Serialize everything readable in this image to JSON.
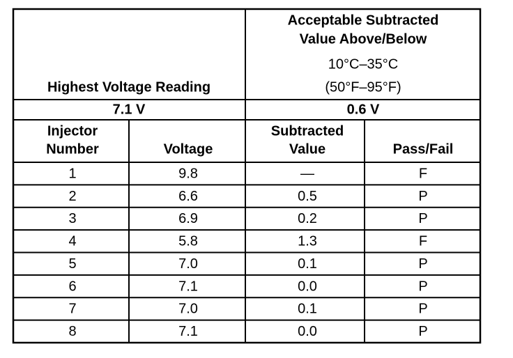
{
  "header": {
    "left_title": "Highest Voltage Reading",
    "right_title_lines": [
      "Acceptable Subtracted",
      "Value Above/Below"
    ],
    "temperature_c": "10°C–35°C",
    "temperature_f": "(50°F–95°F)"
  },
  "highest_voltage": "7.1 V",
  "acceptable_value": "0.6 V",
  "table": {
    "columns": [
      [
        "Injector",
        "Number"
      ],
      [
        "Voltage"
      ],
      [
        "Subtracted",
        "Value"
      ],
      [
        "Pass/Fail"
      ]
    ],
    "rows": [
      [
        "1",
        "9.8",
        "—",
        "F"
      ],
      [
        "2",
        "6.6",
        "0.5",
        "P"
      ],
      [
        "3",
        "6.9",
        "0.2",
        "P"
      ],
      [
        "4",
        "5.8",
        "1.3",
        "F"
      ],
      [
        "5",
        "7.0",
        "0.1",
        "P"
      ],
      [
        "6",
        "7.1",
        "0.0",
        "P"
      ],
      [
        "7",
        "7.0",
        "0.1",
        "P"
      ],
      [
        "8",
        "7.1",
        "0.0",
        "P"
      ]
    ]
  }
}
